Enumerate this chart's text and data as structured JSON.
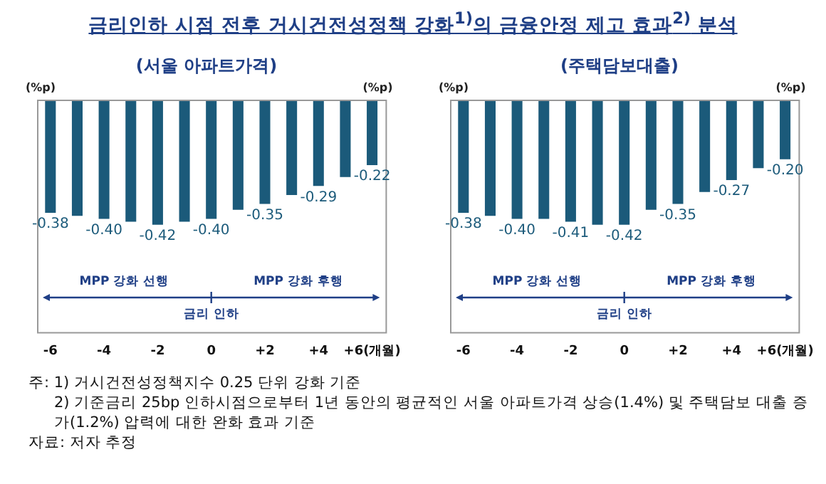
{
  "chart_data": [
    {
      "type": "bar",
      "title": "금리인하 시점 전후 거시건전성정책 강화$^{1)}$의 금융안정 제고 효과$^{2)}$ 분석",
      "subtitle": "(서울 아파트가격)",
      "ylabel": "(%p)",
      "y2label": "(%p)",
      "categories": [
        "-6",
        null,
        "-4",
        null,
        "-2",
        null,
        "0",
        null,
        "+2",
        null,
        "+4",
        null,
        "+6(개월)"
      ],
      "values": [
        -0.38,
        -0.39,
        -0.4,
        -0.41,
        -0.42,
        -0.41,
        -0.4,
        -0.37,
        -0.35,
        -0.32,
        -0.29,
        -0.26,
        -0.22
      ],
      "value_labels": [
        "-0.38",
        null,
        "-0.40",
        null,
        "-0.42",
        null,
        "-0.40",
        null,
        "-0.35",
        null,
        "-0.29",
        null,
        "-0.22"
      ],
      "color": "#1b5a7a",
      "ylim": [
        -0.78,
        0
      ],
      "tick_labels": "x",
      "grid": false,
      "legend": false,
      "annotations": [
        "MPP 강화 선행",
        "MPP 강화 후행",
        "금리 인하"
      ]
    },
    {
      "type": "bar",
      "subtitle": "(주택담보대출)",
      "ylabel": "(%p)",
      "y2label": "(%p)",
      "categories": [
        "-6",
        null,
        "-4",
        null,
        "-2",
        null,
        "0",
        null,
        "+2",
        null,
        "+4",
        null,
        "+6(개월)"
      ],
      "values": [
        -0.38,
        -0.39,
        -0.4,
        -0.4,
        -0.41,
        -0.42,
        -0.42,
        -0.37,
        -0.35,
        -0.31,
        -0.27,
        -0.23,
        -0.2
      ],
      "value_labels": [
        "-0.38",
        null,
        "-0.40",
        null,
        "-0.41",
        null,
        "-0.42",
        null,
        "-0.35",
        null,
        "-0.27",
        null,
        "-0.20"
      ],
      "color": "#1b5a7a",
      "ylim": [
        -0.78,
        0
      ],
      "tick_labels": "x",
      "grid": false,
      "legend": false,
      "annotations": [
        "MPP 강화 선행",
        "MPP 강화 후행",
        "금리 인하",
        "주: 1) 거시건전성정책지수 0.25 단위 강화 기준",
        "2) 기준금리 25bp 인하시점으로부터 1년 동안의 평균적인 서울 아파트가격 상승(1.4%) 및 주택담보 대출 증가(1.2%) 압력에 대한 완화 효과 기준",
        "자료: 저자 추정"
      ]
    }
  ]
}
